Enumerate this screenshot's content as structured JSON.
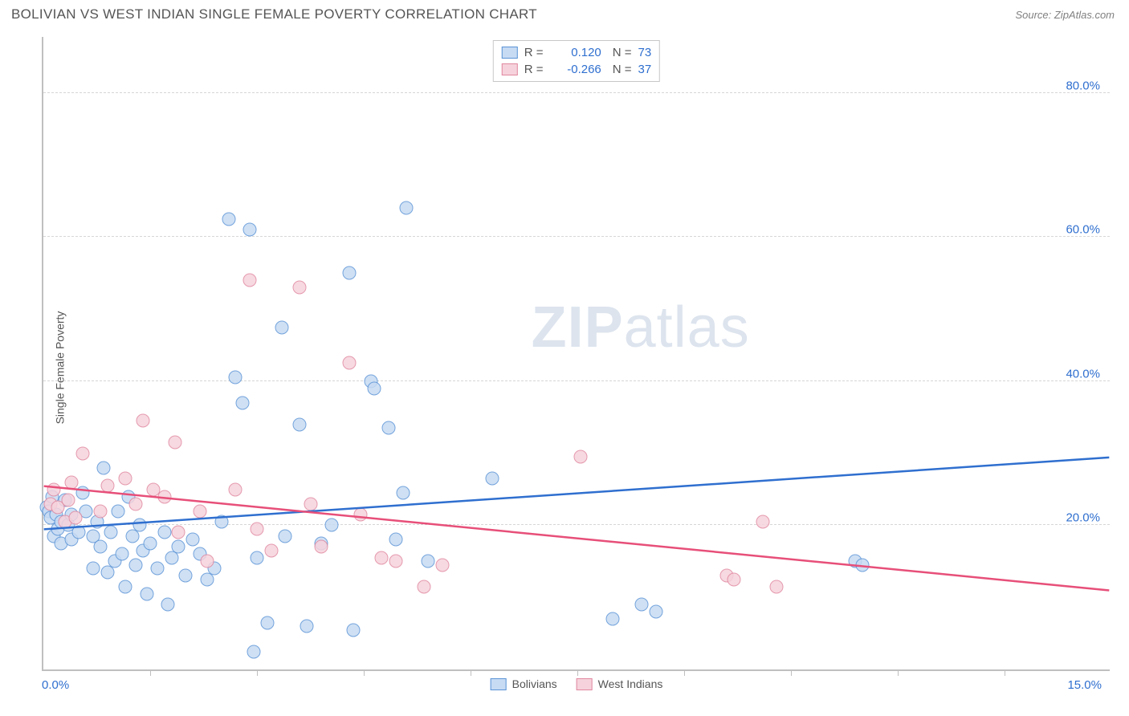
{
  "title": "BOLIVIAN VS WEST INDIAN SINGLE FEMALE POVERTY CORRELATION CHART",
  "source": "Source: ZipAtlas.com",
  "ylabel": "Single Female Poverty",
  "watermark": {
    "bold": "ZIP",
    "light": "atlas"
  },
  "chart": {
    "type": "scatter",
    "xlim": [
      0.0,
      15.0
    ],
    "ylim": [
      0.0,
      88.0
    ],
    "x_ticks_minor": [
      1.5,
      3.0,
      4.5,
      6.0,
      7.5,
      9.0,
      10.5,
      12.0,
      13.5
    ],
    "y_gridlines": [
      20.0,
      40.0,
      60.0,
      80.0
    ],
    "y_tick_labels": [
      "20.0%",
      "40.0%",
      "60.0%",
      "80.0%"
    ],
    "xlim_labels": [
      "0.0%",
      "15.0%"
    ],
    "background_color": "#ffffff",
    "grid_color": "#d6d6d6",
    "axis_color": "#bfbfbf",
    "marker_radius": 8.5,
    "marker_stroke_width": 1.2,
    "series": [
      {
        "name": "Bolivians",
        "fill": "#c7dbf3",
        "stroke": "#5b94d6",
        "trend_color": "#2f6fcf",
        "trend": {
          "y_at_x0": 19.5,
          "y_at_xmax": 29.5
        },
        "R_label": "R =",
        "R": "0.120",
        "N_label": "N =",
        "N": "73",
        "points": [
          [
            0.05,
            22.5
          ],
          [
            0.08,
            22.0
          ],
          [
            0.1,
            21.0
          ],
          [
            0.12,
            24.0
          ],
          [
            0.15,
            18.5
          ],
          [
            0.18,
            21.5
          ],
          [
            0.2,
            19.5
          ],
          [
            0.25,
            20.5
          ],
          [
            0.25,
            17.5
          ],
          [
            0.3,
            23.5
          ],
          [
            0.35,
            20.0
          ],
          [
            0.4,
            18.0
          ],
          [
            0.4,
            21.5
          ],
          [
            0.5,
            19.0
          ],
          [
            0.55,
            24.5
          ],
          [
            0.6,
            22.0
          ],
          [
            0.7,
            18.5
          ],
          [
            0.7,
            14.0
          ],
          [
            0.75,
            20.5
          ],
          [
            0.8,
            17.0
          ],
          [
            0.85,
            28.0
          ],
          [
            0.9,
            13.5
          ],
          [
            0.95,
            19.0
          ],
          [
            1.0,
            15.0
          ],
          [
            1.05,
            22.0
          ],
          [
            1.1,
            16.0
          ],
          [
            1.15,
            11.5
          ],
          [
            1.2,
            24.0
          ],
          [
            1.25,
            18.5
          ],
          [
            1.3,
            14.5
          ],
          [
            1.35,
            20.0
          ],
          [
            1.4,
            16.5
          ],
          [
            1.45,
            10.5
          ],
          [
            1.5,
            17.5
          ],
          [
            1.6,
            14.0
          ],
          [
            1.7,
            19.0
          ],
          [
            1.75,
            9.0
          ],
          [
            1.8,
            15.5
          ],
          [
            1.9,
            17.0
          ],
          [
            2.0,
            13.0
          ],
          [
            2.1,
            18.0
          ],
          [
            2.2,
            16.0
          ],
          [
            2.3,
            12.5
          ],
          [
            2.4,
            14.0
          ],
          [
            2.5,
            20.5
          ],
          [
            2.6,
            62.5
          ],
          [
            2.7,
            40.5
          ],
          [
            2.8,
            37.0
          ],
          [
            2.9,
            61.0
          ],
          [
            2.95,
            2.5
          ],
          [
            3.0,
            15.5
          ],
          [
            3.15,
            6.5
          ],
          [
            3.35,
            47.5
          ],
          [
            3.4,
            18.5
          ],
          [
            3.6,
            34.0
          ],
          [
            3.7,
            6.0
          ],
          [
            3.9,
            17.5
          ],
          [
            4.05,
            20.0
          ],
          [
            4.3,
            55.0
          ],
          [
            4.35,
            5.5
          ],
          [
            4.6,
            40.0
          ],
          [
            4.65,
            39.0
          ],
          [
            4.85,
            33.5
          ],
          [
            4.95,
            18.0
          ],
          [
            5.05,
            24.5
          ],
          [
            5.1,
            64.0
          ],
          [
            5.4,
            15.0
          ],
          [
            6.3,
            26.5
          ],
          [
            8.0,
            7.0
          ],
          [
            8.4,
            9.0
          ],
          [
            8.6,
            8.0
          ],
          [
            11.4,
            15.0
          ],
          [
            11.5,
            14.5
          ]
        ]
      },
      {
        "name": "West Indians",
        "fill": "#f6d3dc",
        "stroke": "#e188a0",
        "trend_color": "#e74f79",
        "trend": {
          "y_at_x0": 25.5,
          "y_at_xmax": 11.0
        },
        "R_label": "R =",
        "R": "-0.266",
        "N_label": "N =",
        "N": "37",
        "points": [
          [
            0.1,
            23.0
          ],
          [
            0.15,
            25.0
          ],
          [
            0.2,
            22.5
          ],
          [
            0.3,
            20.5
          ],
          [
            0.35,
            23.5
          ],
          [
            0.4,
            26.0
          ],
          [
            0.45,
            21.0
          ],
          [
            0.55,
            30.0
          ],
          [
            0.8,
            22.0
          ],
          [
            0.9,
            25.5
          ],
          [
            1.15,
            26.5
          ],
          [
            1.3,
            23.0
          ],
          [
            1.4,
            34.5
          ],
          [
            1.55,
            25.0
          ],
          [
            1.7,
            24.0
          ],
          [
            1.85,
            31.5
          ],
          [
            1.9,
            19.0
          ],
          [
            2.2,
            22.0
          ],
          [
            2.3,
            15.0
          ],
          [
            2.7,
            25.0
          ],
          [
            2.9,
            54.0
          ],
          [
            3.0,
            19.5
          ],
          [
            3.2,
            16.5
          ],
          [
            3.6,
            53.0
          ],
          [
            3.75,
            23.0
          ],
          [
            3.9,
            17.0
          ],
          [
            4.3,
            42.5
          ],
          [
            4.45,
            21.5
          ],
          [
            4.75,
            15.5
          ],
          [
            4.95,
            15.0
          ],
          [
            5.35,
            11.5
          ],
          [
            5.6,
            14.5
          ],
          [
            7.55,
            29.5
          ],
          [
            9.6,
            13.0
          ],
          [
            9.7,
            12.5
          ],
          [
            10.1,
            20.5
          ],
          [
            10.3,
            11.5
          ]
        ]
      }
    ]
  }
}
